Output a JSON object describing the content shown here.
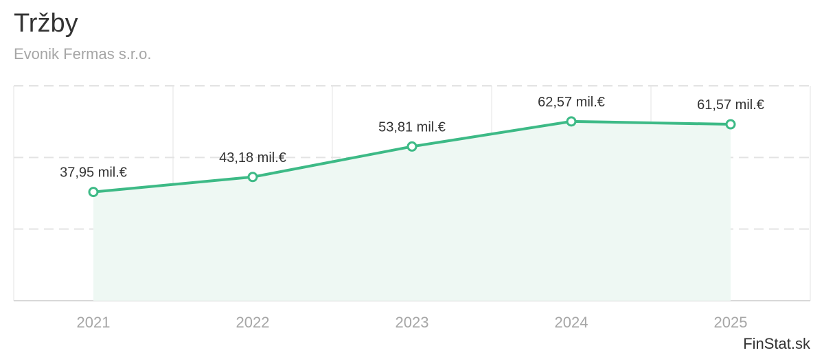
{
  "header": {
    "title": "Tržby",
    "subtitle": "Evonik Fermas s.r.o."
  },
  "footer": {
    "brand": "FinStat.sk"
  },
  "colors": {
    "line": "#3dba86",
    "area": "#eef8f3",
    "grid": "#e3e3e3",
    "axis": "#d8d8d8"
  },
  "chart_data": {
    "type": "area",
    "title": "Tržby",
    "subtitle": "Evonik Fermas s.r.o.",
    "categories": [
      "2021",
      "2022",
      "2023",
      "2024",
      "2025"
    ],
    "values": [
      37.95,
      43.18,
      53.81,
      62.57,
      61.57
    ],
    "data_labels": [
      "37,95 mil.€",
      "43,18 mil.€",
      "53,81 mil.€",
      "62,57 mil.€",
      "61,57 mil.€"
    ],
    "unit": "mil.€",
    "ylim": [
      0,
      75
    ],
    "grid": true,
    "legend": "none"
  }
}
